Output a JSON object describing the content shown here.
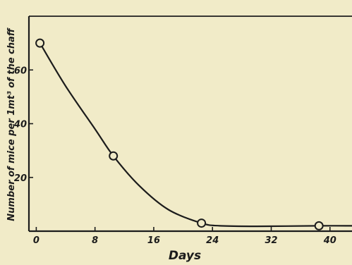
{
  "chart_data": {
    "type": "line",
    "title": "",
    "xlabel": "Days",
    "ylabel": "Number of mice per 1mt³ of the chaff",
    "xlim": [
      -1,
      43
    ],
    "ylim": [
      0,
      80
    ],
    "xticks": [
      0,
      8,
      16,
      24,
      32,
      40
    ],
    "yticks": [
      20,
      40,
      60
    ],
    "xtick_labels": [
      "0",
      "8",
      "16",
      "24",
      "32",
      "40"
    ],
    "ytick_labels": [
      "20",
      "40",
      "60"
    ],
    "grid": false,
    "legend": "none",
    "series": [
      {
        "points": [
          {
            "x": 0.5,
            "y": 70
          },
          {
            "x": 10.5,
            "y": 28
          },
          {
            "x": 22.5,
            "y": 3
          },
          {
            "x": 38.5,
            "y": 2
          }
        ]
      }
    ],
    "fit_curve": [
      [
        0.5,
        70
      ],
      [
        4,
        54
      ],
      [
        8,
        38
      ],
      [
        10.5,
        28
      ],
      [
        14,
        17
      ],
      [
        18,
        8
      ],
      [
        22.5,
        3
      ],
      [
        25,
        2
      ],
      [
        30,
        1.8
      ],
      [
        38.5,
        2
      ],
      [
        43,
        2
      ]
    ]
  },
  "style": {
    "background": "#f1ebc8",
    "ink": "#1c1c1c"
  }
}
